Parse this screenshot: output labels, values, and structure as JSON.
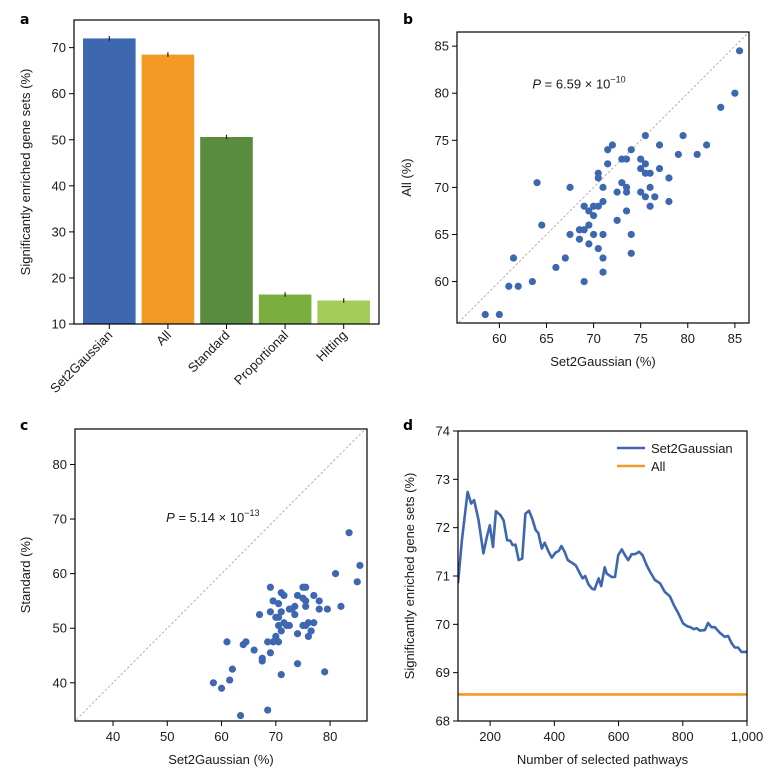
{
  "chart_data": [
    {
      "panel": "a",
      "type": "bar",
      "title": "",
      "xlabel": "",
      "ylabel": "Significantly enriched gene sets (%)",
      "ylim": [
        10,
        76
      ],
      "yticks": [
        10,
        20,
        30,
        40,
        50,
        60,
        70
      ],
      "categories": [
        "Set2Gaussian",
        "All",
        "Standard",
        "Proportional",
        "Hitting"
      ],
      "values": [
        72.0,
        68.5,
        50.6,
        16.4,
        15.1
      ],
      "errors": [
        0.5,
        0.5,
        0.5,
        0.5,
        0.5
      ],
      "colors": [
        "#3e67b1",
        "#f39a25",
        "#5a8c3f",
        "#7aaf40",
        "#a3cc5a"
      ]
    },
    {
      "panel": "b",
      "type": "scatter",
      "xlabel": "Set2Gaussian (%)",
      "ylabel": "All (%)",
      "xlim": [
        55.5,
        86.5
      ],
      "ylim": [
        55.6,
        86.5
      ],
      "xticks": [
        60,
        65,
        70,
        75,
        80,
        85
      ],
      "yticks": [
        60,
        65,
        70,
        75,
        80,
        85
      ],
      "annotation": {
        "italic": "P",
        "text": " = 6.59 × 10",
        "exponent": "−10",
        "x": 63.5,
        "y": 80.5
      },
      "diagonal": true,
      "color": "#3e67b1",
      "points": [
        [
          58.5,
          56.5
        ],
        [
          60,
          56.5
        ],
        [
          61,
          59.5
        ],
        [
          62,
          59.5
        ],
        [
          61.5,
          62.5
        ],
        [
          63.5,
          60
        ],
        [
          64,
          70.5
        ],
        [
          64.5,
          66
        ],
        [
          66,
          61.5
        ],
        [
          67,
          62.5
        ],
        [
          67.5,
          70
        ],
        [
          67.5,
          65
        ],
        [
          68.5,
          65.5
        ],
        [
          68.5,
          64.5
        ],
        [
          69,
          65.5
        ],
        [
          69,
          68
        ],
        [
          69,
          60
        ],
        [
          69.5,
          67.5
        ],
        [
          69.5,
          66
        ],
        [
          69.5,
          64
        ],
        [
          70,
          67
        ],
        [
          70,
          68
        ],
        [
          70,
          65
        ],
        [
          70.5,
          68
        ],
        [
          70.5,
          71.5
        ],
        [
          70.5,
          71
        ],
        [
          70.5,
          63.5
        ],
        [
          71,
          68.5
        ],
        [
          71,
          70
        ],
        [
          71,
          65
        ],
        [
          71,
          62.5
        ],
        [
          71,
          61
        ],
        [
          71.5,
          74
        ],
        [
          71.5,
          72.5
        ],
        [
          72,
          74.5
        ],
        [
          72.5,
          69.5
        ],
        [
          72.5,
          66.5
        ],
        [
          73,
          73
        ],
        [
          73,
          70.5
        ],
        [
          73.5,
          73
        ],
        [
          73.5,
          70
        ],
        [
          73.5,
          69.5
        ],
        [
          73.5,
          67.5
        ],
        [
          74,
          74
        ],
        [
          74,
          65
        ],
        [
          74,
          63
        ],
        [
          75,
          73
        ],
        [
          75,
          72
        ],
        [
          75,
          69.5
        ],
        [
          75.5,
          75.5
        ],
        [
          75.5,
          72.5
        ],
        [
          75.5,
          71.5
        ],
        [
          75.5,
          69
        ],
        [
          76,
          71.5
        ],
        [
          76,
          70
        ],
        [
          76,
          68
        ],
        [
          76.5,
          69
        ],
        [
          77,
          74.5
        ],
        [
          77,
          72
        ],
        [
          78,
          71
        ],
        [
          78,
          68.5
        ],
        [
          79,
          73.5
        ],
        [
          79.5,
          75.5
        ],
        [
          81,
          73.5
        ],
        [
          82,
          74.5
        ],
        [
          83.5,
          78.5
        ],
        [
          85,
          80
        ],
        [
          85.5,
          84.5
        ]
      ]
    },
    {
      "panel": "c",
      "type": "scatter",
      "xlabel": "Set2Gaussian (%)",
      "ylabel": "Standard (%)",
      "xlim": [
        33,
        86.8
      ],
      "ylim": [
        33,
        86.5
      ],
      "xticks": [
        40,
        50,
        60,
        70,
        80
      ],
      "yticks": [
        40,
        50,
        60,
        70,
        80
      ],
      "annotation": {
        "italic": "P",
        "text": " = 5.14 × 10",
        "exponent": "−13",
        "x": 49.8,
        "y": 69.5
      },
      "diagonal": true,
      "color": "#3e67b1",
      "points": [
        [
          58.5,
          40
        ],
        [
          60,
          39
        ],
        [
          61,
          47.5
        ],
        [
          61.5,
          40.5
        ],
        [
          62,
          42.5
        ],
        [
          63.5,
          34
        ],
        [
          64,
          47
        ],
        [
          64.5,
          47.5
        ],
        [
          66,
          46
        ],
        [
          67,
          52.5
        ],
        [
          67.5,
          44.5
        ],
        [
          67.5,
          44
        ],
        [
          68.5,
          47.5
        ],
        [
          68.5,
          35
        ],
        [
          69,
          57.5
        ],
        [
          69,
          53
        ],
        [
          69,
          45.5
        ],
        [
          69.5,
          55
        ],
        [
          69.5,
          47.5
        ],
        [
          70,
          48
        ],
        [
          70,
          52
        ],
        [
          70,
          48.5
        ],
        [
          70.5,
          54.5
        ],
        [
          70.5,
          52
        ],
        [
          70.5,
          50.5
        ],
        [
          70.5,
          47.5
        ],
        [
          71,
          56.5
        ],
        [
          71,
          53
        ],
        [
          71,
          49.5
        ],
        [
          71,
          41.5
        ],
        [
          71.5,
          56
        ],
        [
          71.5,
          51
        ],
        [
          72,
          50.5
        ],
        [
          72.5,
          53.5
        ],
        [
          72.5,
          50.5
        ],
        [
          73,
          53.5
        ],
        [
          73.5,
          54
        ],
        [
          73.5,
          52.5
        ],
        [
          74,
          56
        ],
        [
          74,
          49
        ],
        [
          74,
          43.5
        ],
        [
          75,
          57.5
        ],
        [
          75,
          55.5
        ],
        [
          75,
          50.5
        ],
        [
          75.5,
          57.5
        ],
        [
          75.5,
          55
        ],
        [
          75.5,
          54
        ],
        [
          75.5,
          50.5
        ],
        [
          76,
          51
        ],
        [
          76,
          48.5
        ],
        [
          76.5,
          49.5
        ],
        [
          77,
          56
        ],
        [
          77,
          51
        ],
        [
          78,
          55
        ],
        [
          78,
          53.5
        ],
        [
          79.5,
          53.5
        ],
        [
          79,
          42
        ],
        [
          81,
          60
        ],
        [
          82,
          54
        ],
        [
          83.5,
          67.5
        ],
        [
          85,
          58.5
        ],
        [
          85.5,
          61.5
        ]
      ]
    },
    {
      "panel": "d",
      "type": "line",
      "xlabel": "Number of selected pathways",
      "ylabel": "Significantly enriched gene sets (%)",
      "xlim": [
        100,
        1000
      ],
      "ylim": [
        68,
        74
      ],
      "xticks": [
        200,
        400,
        600,
        800,
        1000
      ],
      "xtick_labels": [
        "200",
        "400",
        "600",
        "800",
        "1,000"
      ],
      "yticks": [
        68,
        69,
        70,
        71,
        72,
        73,
        74
      ],
      "legend": "top-right",
      "series": [
        {
          "name": "Set2Gaussian",
          "color": "#3e67b1",
          "points": [
            [
              100,
              70.85
            ],
            [
              112,
              71.74
            ],
            [
              130,
              72.74
            ],
            [
              141,
              72.5
            ],
            [
              150,
              72.57
            ],
            [
              164,
              72.15
            ],
            [
              179,
              71.47
            ],
            [
              190,
              71.81
            ],
            [
              199,
              72.05
            ],
            [
              209,
              71.6
            ],
            [
              218,
              72.34
            ],
            [
              232,
              72.26
            ],
            [
              242,
              72.15
            ],
            [
              253,
              71.74
            ],
            [
              263,
              71.73
            ],
            [
              270,
              71.64
            ],
            [
              279,
              71.65
            ],
            [
              289,
              71.33
            ],
            [
              300,
              71.36
            ],
            [
              310,
              72.29
            ],
            [
              321,
              72.35
            ],
            [
              331,
              72.19
            ],
            [
              342,
              71.95
            ],
            [
              350,
              71.89
            ],
            [
              361,
              71.57
            ],
            [
              370,
              71.69
            ],
            [
              382,
              71.5
            ],
            [
              392,
              71.38
            ],
            [
              403,
              71.48
            ],
            [
              414,
              71.52
            ],
            [
              422,
              71.62
            ],
            [
              432,
              71.5
            ],
            [
              442,
              71.33
            ],
            [
              456,
              71.27
            ],
            [
              467,
              71.22
            ],
            [
              480,
              71.05
            ],
            [
              488,
              70.95
            ],
            [
              496,
              71.0
            ],
            [
              506,
              70.83
            ],
            [
              517,
              70.74
            ],
            [
              525,
              70.72
            ],
            [
              538,
              70.95
            ],
            [
              546,
              70.79
            ],
            [
              557,
              71.18
            ],
            [
              563,
              71.05
            ],
            [
              579,
              70.98
            ],
            [
              589,
              70.98
            ],
            [
              599,
              71.43
            ],
            [
              610,
              71.55
            ],
            [
              620,
              71.43
            ],
            [
              630,
              71.33
            ],
            [
              641,
              71.45
            ],
            [
              651,
              71.45
            ],
            [
              664,
              71.5
            ],
            [
              675,
              71.43
            ],
            [
              687,
              71.23
            ],
            [
              698,
              71.09
            ],
            [
              713,
              70.92
            ],
            [
              729,
              70.85
            ],
            [
              744,
              70.67
            ],
            [
              760,
              70.58
            ],
            [
              772,
              70.4
            ],
            [
              786,
              70.23
            ],
            [
              801,
              70.02
            ],
            [
              814,
              69.96
            ],
            [
              824,
              69.94
            ],
            [
              834,
              69.9
            ],
            [
              843,
              69.92
            ],
            [
              853,
              69.87
            ],
            [
              869,
              69.88
            ],
            [
              879,
              70.03
            ],
            [
              889,
              69.94
            ],
            [
              900,
              69.94
            ],
            [
              915,
              69.83
            ],
            [
              931,
              69.74
            ],
            [
              941,
              69.76
            ],
            [
              952,
              69.61
            ],
            [
              962,
              69.52
            ],
            [
              972,
              69.52
            ],
            [
              983,
              69.43
            ],
            [
              1000,
              69.43
            ]
          ]
        },
        {
          "name": "All",
          "color": "#f39a25",
          "points": [
            [
              100,
              68.55
            ],
            [
              1000,
              68.55
            ]
          ]
        }
      ]
    }
  ]
}
